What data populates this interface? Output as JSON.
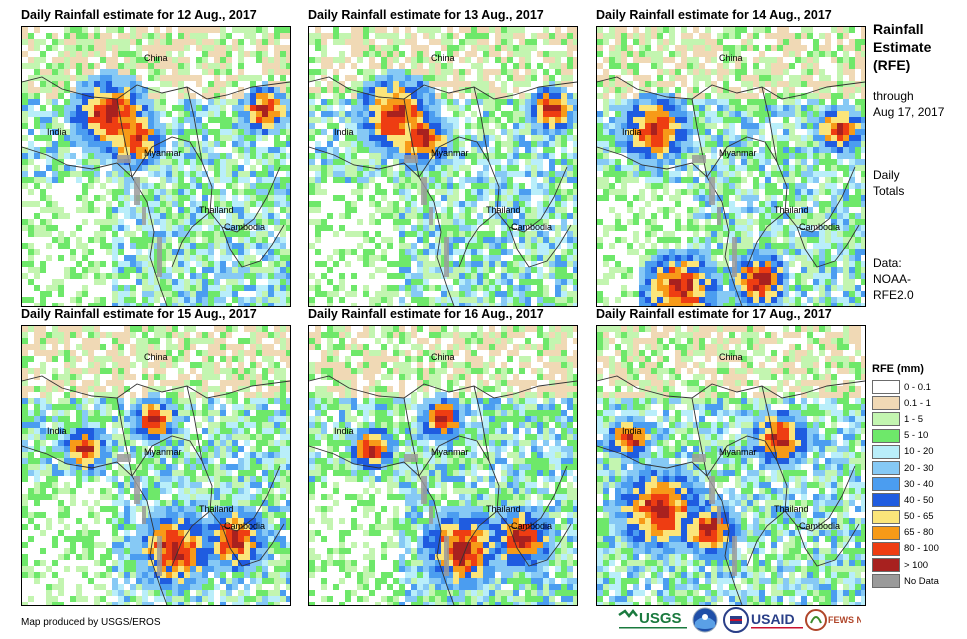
{
  "panels": [
    {
      "title": "Daily Rainfall estimate for 12 Aug., 2017",
      "seed": 12,
      "mode": "north"
    },
    {
      "title": "Daily Rainfall estimate for 13 Aug., 2017",
      "seed": 13,
      "mode": "north"
    },
    {
      "title": "Daily Rainfall estimate for 14 Aug., 2017",
      "seed": 14,
      "mode": "mixed"
    },
    {
      "title": "Daily Rainfall estimate for 15 Aug., 2017",
      "seed": 15,
      "mode": "south"
    },
    {
      "title": "Daily Rainfall estimate for 16 Aug., 2017",
      "seed": 16,
      "mode": "south"
    },
    {
      "title": "Daily Rainfall estimate for 17 Aug., 2017",
      "seed": 17,
      "mode": "bay"
    }
  ],
  "map_labels": {
    "china": "China",
    "india": "India",
    "myanmar": "Myanmar",
    "thailand": "Thailand",
    "cambodia": "Cambodia"
  },
  "side": {
    "title_line1": "Rainfall",
    "title_line2": "Estimate",
    "title_line3": "(RFE)",
    "through": "through",
    "through_date": "Aug 17, 2017",
    "daily": "Daily",
    "totals": "Totals",
    "data_label": "Data:",
    "data_src1": "NOAA-",
    "data_src2": "RFE2.0"
  },
  "legend": {
    "title": "RFE (mm)",
    "items": [
      {
        "label": "0 - 0.1",
        "color": "#ffffff"
      },
      {
        "label": "0.1 - 1",
        "color": "#f0d9b5"
      },
      {
        "label": "1 - 5",
        "color": "#c3f5b0"
      },
      {
        "label": "5 - 10",
        "color": "#6ee86a"
      },
      {
        "label": "10 - 20",
        "color": "#b9eefa"
      },
      {
        "label": "20 - 30",
        "color": "#86c9f5"
      },
      {
        "label": "30 - 40",
        "color": "#4b9df0"
      },
      {
        "label": "40 - 50",
        "color": "#1f5ce0"
      },
      {
        "label": "50 - 65",
        "color": "#fbe57a"
      },
      {
        "label": "65 - 80",
        "color": "#f79a18"
      },
      {
        "label": "80 - 100",
        "color": "#ee3d12"
      },
      {
        "label": "> 100",
        "color": "#a8211f"
      },
      {
        "label": "No Data",
        "color": "#9a9a9a"
      }
    ]
  },
  "credit": "Map produced by USGS/EROS",
  "logos": {
    "usgs": "USGS",
    "usaid": "USAID",
    "fewsnet": "FEWS NET"
  }
}
